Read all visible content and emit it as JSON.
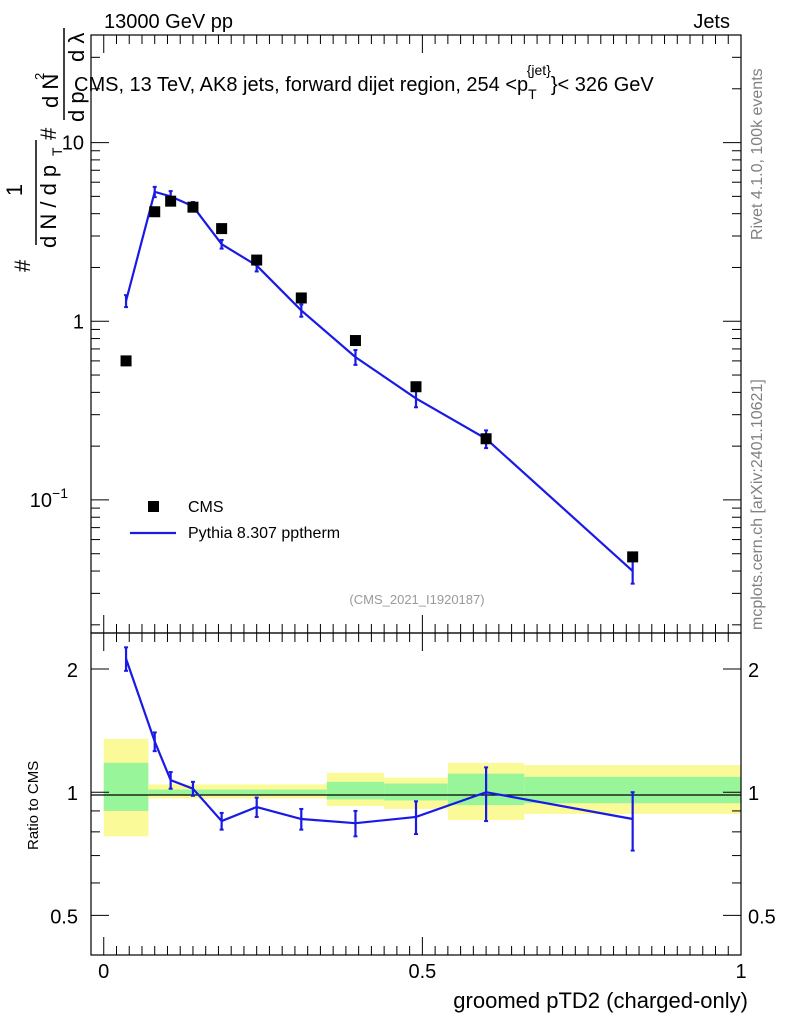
{
  "header": {
    "left": "13000 GeV pp",
    "right": "Jets"
  },
  "side_labels": {
    "rivet": "Rivet 4.1.0,  100k events",
    "mcplots": "mcplots.cern.ch [arXiv:2401.10621]"
  },
  "colors": {
    "mc": "#1a1ae6",
    "data": "#000000",
    "band_inner": "#99f599",
    "band_outer": "#fafa99"
  },
  "chart_data": [
    {
      "type": "scatter",
      "title": "CMS, 13 TeV, AK8 jets, forward dijet region, 254 <p_T^{jet}< 326 GeV",
      "title_parts": {
        "main": "CMS, 13 TeV, AK8 jets, forward dijet region, 254 <p",
        "sub": "T",
        "sup": "{jet}",
        "tail": "}< 326 GeV"
      },
      "ylabel": "1/(dN/dp_T) d²N/(dp_T dλ)",
      "ylabel_parts": {
        "one": "1",
        "den": "d N / d p",
        "numer": "d N",
        "num_sup": "2",
        "den2": "d p",
        "lambda": "d λ",
        "sub": "T",
        "hash": "#"
      },
      "yscale": "log",
      "ylim": [
        0.018,
        40
      ],
      "xlim": [
        -0.02,
        1.0
      ],
      "yticks_major": [
        {
          "v": 10,
          "label": "10"
        },
        {
          "v": 1,
          "label": "1"
        },
        {
          "v": 0.1,
          "label": "10",
          "sup": "−1"
        }
      ],
      "watermark": "(CMS_2021_I1920187)",
      "legend": {
        "position": "lower-left",
        "entries": [
          "CMS",
          "Pythia 8.307 pptherm"
        ]
      },
      "series": [
        {
          "name": "CMS",
          "style": "marker",
          "x": [
            0.035,
            0.08,
            0.105,
            0.14,
            0.185,
            0.24,
            0.31,
            0.395,
            0.49,
            0.6,
            0.83
          ],
          "y": [
            0.6,
            4.1,
            4.7,
            4.35,
            3.3,
            2.2,
            1.35,
            0.78,
            0.43,
            0.22,
            0.048
          ]
        },
        {
          "name": "Pythia 8.307 pptherm",
          "style": "line",
          "x": [
            0.035,
            0.08,
            0.105,
            0.14,
            0.185,
            0.24,
            0.31,
            0.395,
            0.49,
            0.6,
            0.83
          ],
          "y": [
            1.3,
            5.3,
            5.0,
            4.4,
            2.7,
            2.05,
            1.15,
            0.63,
            0.37,
            0.22,
            0.04
          ],
          "err": [
            0.1,
            0.35,
            0.35,
            0.25,
            0.15,
            0.15,
            0.09,
            0.06,
            0.04,
            0.025,
            0.006
          ]
        }
      ]
    },
    {
      "type": "line",
      "ylabel": "Ratio to CMS",
      "xlabel": "groomed pTD2 (charged-only)",
      "yscale": "log",
      "ylim": [
        0.4,
        2.45
      ],
      "xlim": [
        -0.02,
        1.0
      ],
      "xticks": [
        {
          "v": 0,
          "label": "0"
        },
        {
          "v": 0.5,
          "label": "0.5"
        },
        {
          "v": 1,
          "label": "1"
        }
      ],
      "yticks": [
        {
          "v": 2,
          "label": "2"
        },
        {
          "v": 1,
          "label": "1"
        },
        {
          "v": 0.5,
          "label": "0.5"
        }
      ],
      "bins": [
        {
          "lo": 0.0,
          "hi": 0.07,
          "inner": [
            0.9,
            1.18
          ],
          "outer": [
            0.78,
            1.35
          ]
        },
        {
          "lo": 0.07,
          "hi": 0.35,
          "inner": [
            0.985,
            1.015
          ],
          "outer": [
            0.965,
            1.045
          ]
        },
        {
          "lo": 0.35,
          "hi": 0.44,
          "inner": [
            0.96,
            1.06
          ],
          "outer": [
            0.925,
            1.115
          ]
        },
        {
          "lo": 0.44,
          "hi": 0.54,
          "inner": [
            0.955,
            1.05
          ],
          "outer": [
            0.91,
            1.085
          ]
        },
        {
          "lo": 0.54,
          "hi": 0.66,
          "inner": [
            0.93,
            1.11
          ],
          "outer": [
            0.855,
            1.18
          ]
        },
        {
          "lo": 0.66,
          "hi": 1.0,
          "inner": [
            0.94,
            1.09
          ],
          "outer": [
            0.885,
            1.165
          ]
        }
      ],
      "series": [
        {
          "name": "Pythia 8.307 pptherm / CMS",
          "x": [
            0.035,
            0.08,
            0.105,
            0.14,
            0.185,
            0.24,
            0.31,
            0.395,
            0.49,
            0.6,
            0.83
          ],
          "y": [
            2.12,
            1.33,
            1.07,
            1.02,
            0.85,
            0.92,
            0.86,
            0.84,
            0.87,
            1.0,
            0.86
          ],
          "err": [
            0.14,
            0.07,
            0.05,
            0.04,
            0.04,
            0.05,
            0.05,
            0.06,
            0.08,
            0.15,
            0.14
          ]
        }
      ]
    }
  ]
}
